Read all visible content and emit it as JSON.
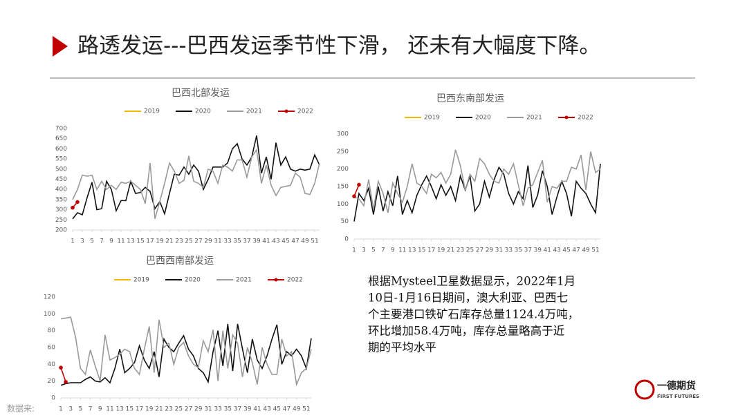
{
  "header": {
    "title": "路透发运---巴西发运季节性下滑， 还未有大幅度下降。"
  },
  "chart_data": [
    {
      "type": "line",
      "title": "巴西北部发运",
      "x": [
        1,
        2,
        3,
        4,
        5,
        6,
        7,
        8,
        9,
        10,
        11,
        12,
        13,
        14,
        15,
        16,
        17,
        18,
        19,
        20,
        21,
        22,
        23,
        24,
        25,
        26,
        27,
        28,
        29,
        30,
        31,
        32,
        33,
        34,
        35,
        36,
        37,
        38,
        39,
        40,
        41,
        42,
        43,
        44,
        45,
        46,
        47,
        48,
        49,
        50,
        51,
        52
      ],
      "xlim": [
        1,
        52
      ],
      "xticks": [
        1,
        3,
        5,
        7,
        9,
        11,
        13,
        15,
        17,
        19,
        21,
        23,
        25,
        27,
        29,
        31,
        33,
        35,
        37,
        39,
        41,
        43,
        45,
        47,
        49,
        51
      ],
      "ylim": [
        200,
        700
      ],
      "yticks": [
        200,
        250,
        300,
        350,
        400,
        450,
        500,
        550,
        600,
        650,
        700
      ],
      "series": [
        {
          "name": "2019",
          "color": "#f5b800"
        },
        {
          "name": "2020",
          "color": "#111111",
          "values": [
            255,
            285,
            275,
            360,
            435,
            300,
            305,
            440,
            400,
            295,
            345,
            345,
            440,
            380,
            385,
            410,
            390,
            305,
            340,
            280,
            380,
            475,
            470,
            510,
            475,
            520,
            490,
            400,
            450,
            510,
            510,
            510,
            530,
            600,
            625,
            550,
            520,
            560,
            665,
            480,
            560,
            450,
            630,
            520,
            560,
            500,
            490,
            500,
            495,
            500,
            570,
            520
          ]
        },
        {
          "name": "2021",
          "color": "#999999",
          "values": [
            350,
            400,
            470,
            465,
            470,
            400,
            440,
            400,
            420,
            400,
            435,
            430,
            440,
            420,
            400,
            330,
            530,
            255,
            340,
            430,
            530,
            490,
            430,
            445,
            565,
            440,
            430,
            410,
            500,
            490,
            430,
            520,
            510,
            490,
            545,
            545,
            460,
            560,
            595,
            430,
            520,
            420,
            370,
            410,
            415,
            420,
            480,
            460,
            380,
            375,
            430,
            530
          ]
        },
        {
          "name": "2022",
          "color": "#c00000",
          "x": [
            1,
            2
          ],
          "values": [
            310,
            338
          ],
          "marker": true
        }
      ]
    },
    {
      "type": "line",
      "title": "巴西东南部发运",
      "x": [
        1,
        2,
        3,
        4,
        5,
        6,
        7,
        8,
        9,
        10,
        11,
        12,
        13,
        14,
        15,
        16,
        17,
        18,
        19,
        20,
        21,
        22,
        23,
        24,
        25,
        26,
        27,
        28,
        29,
        30,
        31,
        32,
        33,
        34,
        35,
        36,
        37,
        38,
        39,
        40,
        41,
        42,
        43,
        44,
        45,
        46,
        47,
        48,
        49,
        50,
        51,
        52
      ],
      "xlim": [
        1,
        52
      ],
      "xticks": [
        1,
        3,
        5,
        7,
        9,
        11,
        13,
        15,
        17,
        19,
        21,
        23,
        25,
        27,
        29,
        31,
        33,
        35,
        37,
        39,
        41,
        43,
        45,
        47,
        49,
        51
      ],
      "ylim": [
        0,
        300
      ],
      "yticks": [
        0,
        50,
        100,
        150,
        200,
        250,
        300
      ],
      "series": [
        {
          "name": "2019",
          "color": "#f5b800"
        },
        {
          "name": "2020",
          "color": "#111111",
          "values": [
            50,
            130,
            110,
            145,
            70,
            150,
            80,
            135,
            95,
            180,
            70,
            110,
            75,
            125,
            155,
            180,
            150,
            115,
            155,
            125,
            150,
            110,
            180,
            140,
            180,
            80,
            100,
            165,
            120,
            170,
            205,
            185,
            130,
            100,
            135,
            115,
            210,
            90,
            125,
            195,
            150,
            70,
            120,
            165,
            130,
            65,
            165,
            145,
            130,
            100,
            75,
            215
          ]
        },
        {
          "name": "2021",
          "color": "#999999",
          "values": [
            120,
            115,
            95,
            170,
            85,
            165,
            130,
            75,
            160,
            130,
            105,
            150,
            215,
            160,
            150,
            130,
            185,
            175,
            190,
            160,
            185,
            255,
            210,
            140,
            185,
            165,
            230,
            215,
            185,
            165,
            160,
            200,
            185,
            215,
            155,
            95,
            145,
            155,
            190,
            225,
            105,
            150,
            145,
            165,
            165,
            205,
            200,
            240,
            140,
            250,
            190,
            200
          ]
        },
        {
          "name": "2022",
          "color": "#c00000",
          "x": [
            1,
            2
          ],
          "values": [
            122,
            155
          ],
          "marker": true
        }
      ]
    },
    {
      "type": "line",
      "title": "巴西西南部发运",
      "x": [
        1,
        2,
        3,
        4,
        5,
        6,
        7,
        8,
        9,
        10,
        11,
        12,
        13,
        14,
        15,
        16,
        17,
        18,
        19,
        20,
        21,
        22,
        23,
        24,
        25,
        26,
        27,
        28,
        29,
        30,
        31,
        32,
        33,
        34,
        35,
        36,
        37,
        38,
        39,
        40,
        41,
        42,
        43,
        44,
        45,
        46,
        47,
        48,
        49,
        50,
        51,
        52
      ],
      "xlim": [
        1,
        52
      ],
      "xticks": [
        1,
        3,
        5,
        7,
        9,
        11,
        13,
        15,
        17,
        19,
        21,
        23,
        25,
        27,
        29,
        31,
        33,
        35,
        37,
        39,
        41,
        43,
        45,
        47,
        49,
        51
      ],
      "ylim": [
        0,
        120
      ],
      "yticks": [
        0,
        20,
        40,
        60,
        80,
        100,
        120
      ],
      "series": [
        {
          "name": "2019",
          "color": "#f5b800"
        },
        {
          "name": "2020",
          "color": "#111111",
          "values": [
            15,
            17,
            18,
            18,
            18,
            22,
            25,
            20,
            19,
            24,
            18,
            35,
            58,
            30,
            35,
            42,
            62,
            45,
            35,
            55,
            25,
            70,
            60,
            55,
            65,
            74,
            58,
            50,
            35,
            30,
            19,
            55,
            80,
            38,
            88,
            32,
            88,
            58,
            30,
            70,
            45,
            35,
            50,
            70,
            87,
            40,
            55,
            50,
            58,
            50,
            35,
            71
          ]
        },
        {
          "name": "2021",
          "color": "#999999",
          "values": [
            94,
            95,
            96,
            72,
            35,
            28,
            57,
            38,
            20,
            75,
            45,
            48,
            52,
            58,
            55,
            35,
            28,
            58,
            85,
            30,
            93,
            60,
            65,
            40,
            60,
            66,
            50,
            40,
            36,
            68,
            55,
            81,
            20,
            80,
            35,
            75,
            65,
            25,
            60,
            42,
            16,
            60,
            40,
            28,
            28,
            70,
            50,
            55,
            16,
            30,
            35,
            58
          ]
        },
        {
          "name": "2022",
          "color": "#c00000",
          "x": [
            1,
            2
          ],
          "values": [
            36,
            19
          ],
          "marker": true
        }
      ]
    }
  ],
  "text": {
    "lines": [
      "根据Mysteel卫星数据显示，2022年1月",
      "10日-1月16日期间，澳大利亚、巴西七",
      "个主要港口铁矿石库存总量1124.4万吨，",
      "环比增加58.4万吨，库存总量略高于近",
      "期的平均水平"
    ]
  },
  "footer": {
    "source": "数据来:",
    "logo": "一德期货",
    "logo_en": "FIRST FUTURES"
  }
}
